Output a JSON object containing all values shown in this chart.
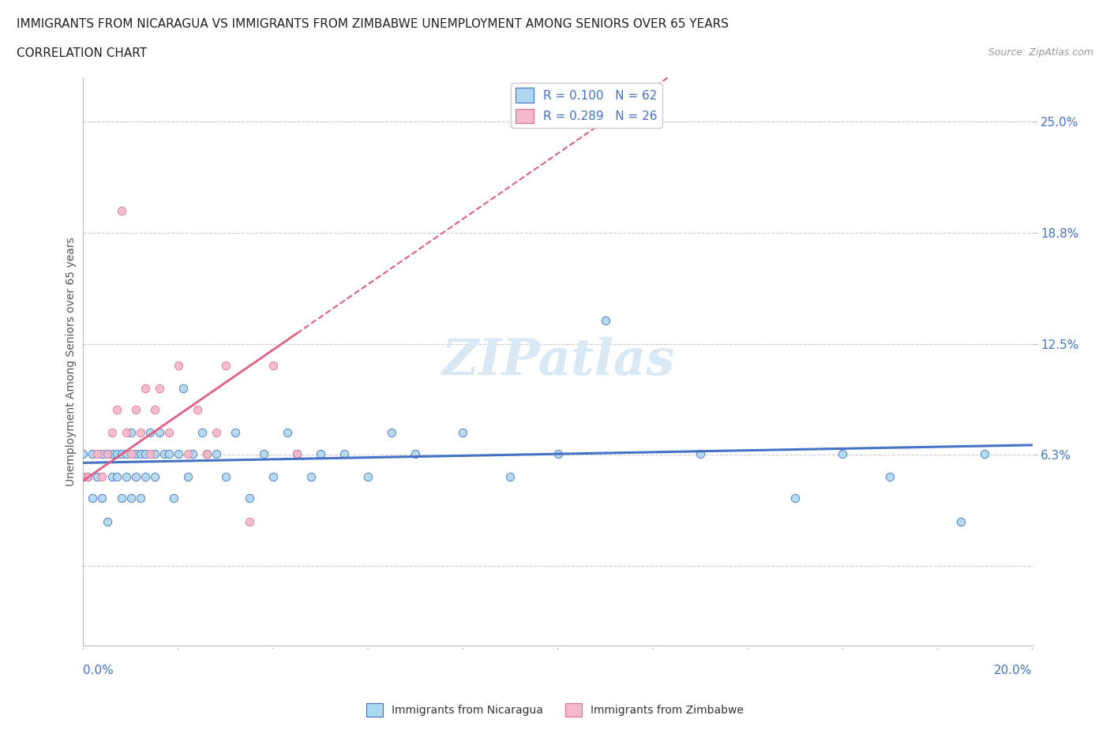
{
  "title_line1": "IMMIGRANTS FROM NICARAGUA VS IMMIGRANTS FROM ZIMBABWE UNEMPLOYMENT AMONG SENIORS OVER 65 YEARS",
  "title_line2": "CORRELATION CHART",
  "source": "Source: ZipAtlas.com",
  "ylabel": "Unemployment Among Seniors over 65 years",
  "ytick_vals": [
    0.0,
    0.0625,
    0.125,
    0.1875,
    0.25
  ],
  "ytick_labels": [
    "",
    "6.3%",
    "12.5%",
    "18.8%",
    "25.0%"
  ],
  "xmin": 0.0,
  "xmax": 0.2,
  "ymin": -0.045,
  "ymax": 0.275,
  "watermark_text": "ZIPatlas",
  "legend_r1": "R = 0.100   N = 62",
  "legend_r2": "R = 0.289   N = 26",
  "color_nicaragua": "#add8f0",
  "color_zimbabwe": "#f4b8cc",
  "line_color_nicaragua": "#4472c4",
  "line_color_zimbabwe": "#e07090",
  "nicaragua_scatter_x": [
    0.0,
    0.001,
    0.002,
    0.002,
    0.003,
    0.004,
    0.004,
    0.005,
    0.005,
    0.006,
    0.006,
    0.007,
    0.007,
    0.008,
    0.008,
    0.009,
    0.009,
    0.01,
    0.01,
    0.011,
    0.011,
    0.012,
    0.012,
    0.013,
    0.013,
    0.014,
    0.015,
    0.015,
    0.016,
    0.017,
    0.018,
    0.019,
    0.02,
    0.021,
    0.022,
    0.023,
    0.025,
    0.026,
    0.028,
    0.03,
    0.032,
    0.035,
    0.038,
    0.04,
    0.043,
    0.045,
    0.048,
    0.05,
    0.055,
    0.06,
    0.065,
    0.07,
    0.08,
    0.09,
    0.1,
    0.11,
    0.13,
    0.15,
    0.16,
    0.17,
    0.185,
    0.19
  ],
  "nicaragua_scatter_y": [
    0.063,
    0.05,
    0.063,
    0.038,
    0.05,
    0.063,
    0.038,
    0.063,
    0.025,
    0.05,
    0.063,
    0.063,
    0.05,
    0.038,
    0.063,
    0.05,
    0.063,
    0.075,
    0.038,
    0.063,
    0.05,
    0.063,
    0.038,
    0.063,
    0.05,
    0.075,
    0.063,
    0.05,
    0.075,
    0.063,
    0.063,
    0.038,
    0.063,
    0.1,
    0.05,
    0.063,
    0.075,
    0.063,
    0.063,
    0.05,
    0.075,
    0.038,
    0.063,
    0.05,
    0.075,
    0.063,
    0.05,
    0.063,
    0.063,
    0.05,
    0.075,
    0.063,
    0.075,
    0.05,
    0.063,
    0.138,
    0.063,
    0.038,
    0.063,
    0.05,
    0.025,
    0.063
  ],
  "zimbabwe_scatter_x": [
    0.0,
    0.001,
    0.003,
    0.004,
    0.005,
    0.006,
    0.007,
    0.008,
    0.009,
    0.01,
    0.011,
    0.012,
    0.013,
    0.014,
    0.015,
    0.016,
    0.018,
    0.02,
    0.022,
    0.024,
    0.026,
    0.028,
    0.03,
    0.035,
    0.04,
    0.045
  ],
  "zimbabwe_scatter_y": [
    0.05,
    0.05,
    0.063,
    0.05,
    0.063,
    0.075,
    0.088,
    0.2,
    0.075,
    0.063,
    0.088,
    0.075,
    0.1,
    0.063,
    0.088,
    0.1,
    0.075,
    0.113,
    0.063,
    0.088,
    0.063,
    0.075,
    0.113,
    0.025,
    0.113,
    0.063
  ],
  "title_fontsize": 11,
  "axis_label_fontsize": 10,
  "tick_fontsize": 11
}
